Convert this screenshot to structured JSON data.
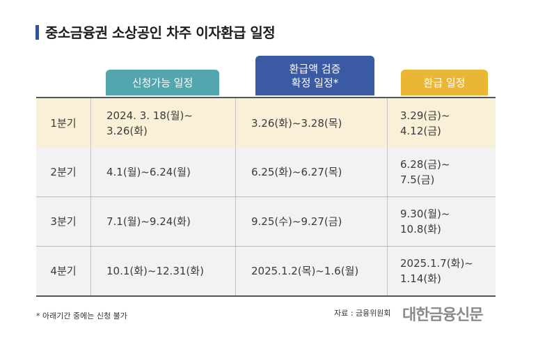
{
  "title": "중소금융권 소상공인 차주 이자환급 일정",
  "headers": {
    "apply": "신청가능 일정",
    "verify_line1": "환급액 검증",
    "verify_line2": "확정 일정*",
    "refund": "환급 일정"
  },
  "rows": [
    {
      "quarter": "1분기",
      "apply": [
        "2024. 3. 18(월)~",
        "3.26(화)"
      ],
      "verify": [
        "3.26(화)~3.28(목)"
      ],
      "refund": [
        "3.29(금)~",
        "4.12(금)"
      ],
      "bg": "#faf0d8"
    },
    {
      "quarter": "2분기",
      "apply": [
        "4.1(월)~6.24(월)"
      ],
      "verify": [
        "6.25(화)~6.27(목)"
      ],
      "refund": [
        "6.28(금)~",
        "7.5(금)"
      ],
      "bg": "#f2f2f2"
    },
    {
      "quarter": "3분기",
      "apply": [
        "7.1(월)~9.24(화)"
      ],
      "verify": [
        "9.25(수)~9.27(금)"
      ],
      "refund": [
        "9.30(월)~",
        "10.8(화)"
      ],
      "bg": "#f2f2f2"
    },
    {
      "quarter": "4분기",
      "apply": [
        "10.1(화)~12.31(화)"
      ],
      "verify": [
        "2025.1.2(목)~1.6(월)"
      ],
      "refund": [
        "2025.1.7(화)~",
        "1.14(화)"
      ],
      "bg": "#f2f2f2"
    }
  ],
  "footnote": "* 아래기간 중에는 신청 불가",
  "source": "자료 : 금융위원회",
  "brand": "대한금융신문",
  "colors": {
    "accent": "#2c55a8",
    "teal": "#53a6ad",
    "blue": "#3a5aa3",
    "gold": "#eab735"
  }
}
